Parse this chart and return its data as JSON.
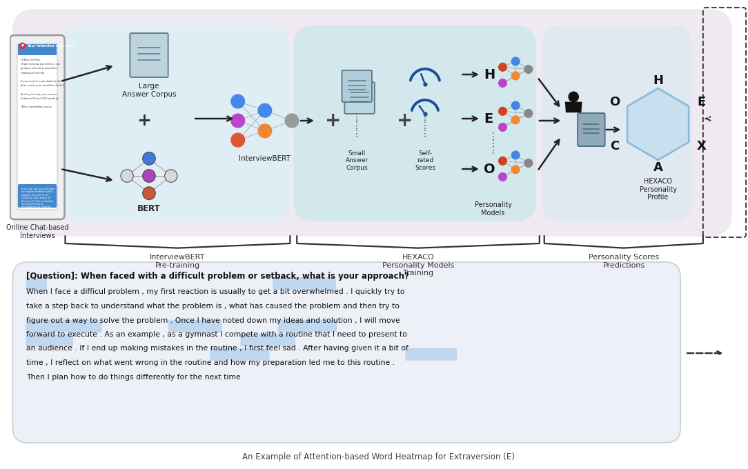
{
  "background_color": "#ffffff",
  "top_panel_bg": "#ede8f0",
  "section1_bg": "#ddeef5",
  "section2_bg": "#cce8ec",
  "section3_bg": "#dde8f0",
  "text_box_bg": "#eef0f8",
  "hexagon_fill": "#c8dff0",
  "hexagon_edge": "#88b8d8",
  "highlight_color": "#99c4e8",
  "title_question": "[Question]: When faced with a difficult problem or setback, what is your approach?",
  "answer_lines": [
    "When I face a difficul problem , my first reaction is usually to get a bit overwhelmed . I quickly try to",
    "take a step back to understand what the problem is , what has caused the problem and then try to",
    "figure out a way to solve the problem . Once I have noted down my ideas and solution , I will move",
    "forward to execute . As an example , as a gymnast I compete with a routine that I need to present to",
    "an audience . If I end up making mistakes in the routine , I first feel sad . After having given it a bit of",
    "time , I reflect on what went wrong in the routine and how my preparation led me to this routine .",
    "Then I plan how to do things differently for the next time"
  ],
  "caption": "An Example of Attention-based Word Heatmap for Extraversion (E)",
  "label_interviewbert_pretrain": "InterviewBERT\nPre-training",
  "label_hexaco_training": "HEXACO\nPersonality Models\nTraining",
  "label_personality_scores": "Personality Scores\nPredictions",
  "label_large_corpus": "Large\nAnswer Corpus",
  "label_bert": "BERT",
  "label_interviewbert_node": "InterviewBERT",
  "label_small_corpus": "Small\nAnswer\nCorpus",
  "label_self_rated": "Self-\nrated\nScores",
  "label_personality_models": "Personality\nModels",
  "label_hexaco_profile": "HEXACO\nPersonality\nProfile",
  "label_online_chat": "Online Chat-based\nInterviews"
}
